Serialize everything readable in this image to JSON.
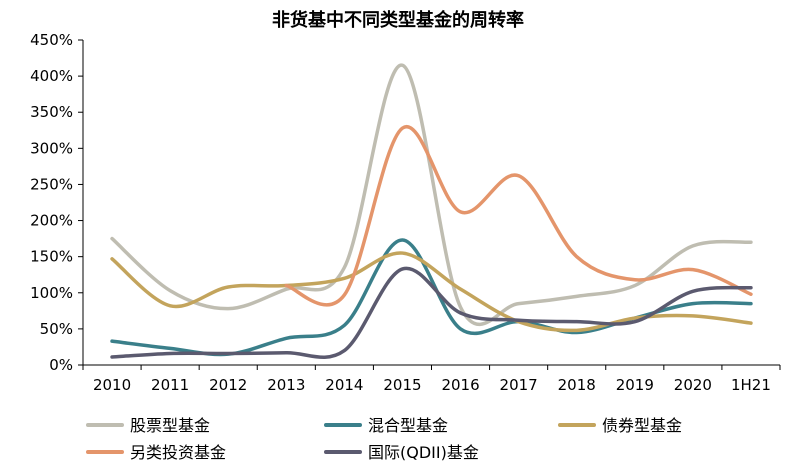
{
  "chart_data": {
    "type": "line",
    "title": "非货基中不同类型基金的周转率",
    "xlabel": "",
    "ylabel": "",
    "categories": [
      "2010",
      "2011",
      "2012",
      "2013",
      "2014",
      "2015",
      "2016",
      "2017",
      "2018",
      "2019",
      "2020",
      "1H21"
    ],
    "y_tick_labels": [
      "0%",
      "50%",
      "100%",
      "150%",
      "200%",
      "250%",
      "300%",
      "350%",
      "400%",
      "450%"
    ],
    "y_ticks": [
      0,
      50,
      100,
      150,
      200,
      250,
      300,
      350,
      400,
      450
    ],
    "ylim": [
      0,
      450
    ],
    "unit": "%",
    "grid": false,
    "legend_position": "bottom",
    "series": [
      {
        "name": "股票型基金",
        "color": "#bfbdb1",
        "values": [
          175,
          103,
          78,
          105,
          135,
          415,
          80,
          85,
          95,
          110,
          165,
          170
        ]
      },
      {
        "name": "混合型基金",
        "color": "#3a7f8a",
        "values": [
          33,
          23,
          15,
          37,
          55,
          173,
          50,
          60,
          45,
          65,
          85,
          85
        ]
      },
      {
        "name": "债券型基金",
        "color": "#c3a45c",
        "values": [
          147,
          82,
          108,
          110,
          120,
          155,
          105,
          60,
          48,
          65,
          68,
          58
        ]
      },
      {
        "name": "另类投资基金",
        "color": "#e4956b",
        "values": [
          null,
          null,
          null,
          110,
          97,
          328,
          212,
          262,
          150,
          118,
          132,
          98
        ]
      },
      {
        "name": "国际(QDII)基金",
        "color": "#5b5a6f",
        "values": [
          11,
          16,
          16,
          17,
          20,
          133,
          72,
          62,
          60,
          60,
          102,
          107
        ]
      }
    ]
  }
}
